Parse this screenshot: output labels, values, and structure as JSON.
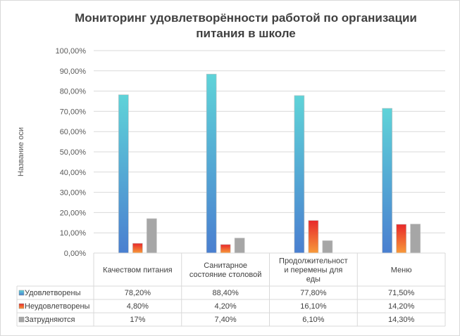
{
  "chart_data": {
    "type": "bar",
    "title_lines": [
      "Мониторинг удовлетворённости работой по организации",
      "питания в школе"
    ],
    "ylabel": "Название оси",
    "ylim": [
      0,
      100
    ],
    "y_ticks": [
      "0,00%",
      "10,00%",
      "20,00%",
      "30,00%",
      "40,00%",
      "50,00%",
      "60,00%",
      "70,00%",
      "80,00%",
      "90,00%",
      "100,00%"
    ],
    "categories": [
      [
        "Качеством питания"
      ],
      [
        "Санитарное",
        "состояние столовой"
      ],
      [
        "Продолжительност",
        "и перемены для",
        "еды"
      ],
      [
        "Меню"
      ]
    ],
    "series": [
      {
        "name": "Удовлетворены",
        "values": [
          78.2,
          88.4,
          77.8,
          71.5
        ],
        "labels": [
          "78,20%",
          "88,40%",
          "77,80%",
          "71,50%"
        ],
        "color_top": "#5fd3d8",
        "color_bottom": "#4a7fd0"
      },
      {
        "name": "Неудовлетворены",
        "values": [
          4.8,
          4.2,
          16.1,
          14.2
        ],
        "labels": [
          "4,80%",
          "4,20%",
          "16,10%",
          "14,20%"
        ],
        "color_top": "#e8282a",
        "color_bottom": "#f79a3a"
      },
      {
        "name": "Затрудняются",
        "values": [
          17,
          7.4,
          6.1,
          14.3
        ],
        "labels": [
          "17%",
          "7,40%",
          "6,10%",
          "14,30%"
        ],
        "color_top": "#a6a6a6",
        "color_bottom": "#a6a6a6"
      }
    ],
    "grid": true,
    "legend": "data-table"
  }
}
